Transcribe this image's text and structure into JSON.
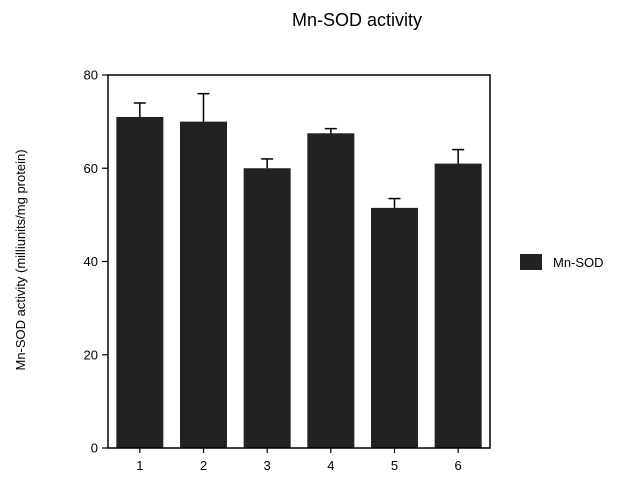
{
  "chart_data": {
    "type": "bar",
    "title": "Mn-SOD activity",
    "xlabel": "",
    "ylabel": "Mn-SOD activity (milliunits/mg protein)",
    "categories": [
      "1",
      "2",
      "3",
      "4",
      "5",
      "6"
    ],
    "series": [
      {
        "name": "Mn-SOD",
        "values": [
          71,
          70,
          60,
          67.5,
          51.5,
          61
        ],
        "errors": [
          3,
          6,
          2,
          1,
          2,
          3
        ]
      }
    ],
    "ylim": [
      0,
      80
    ],
    "yticks": [
      "0",
      "20",
      "40",
      "60",
      "80"
    ],
    "grid": false,
    "legend_position": "right",
    "colors": {
      "bar": "#222222",
      "axis": "#000000"
    }
  }
}
